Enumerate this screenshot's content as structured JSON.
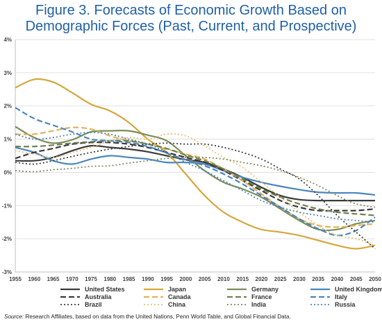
{
  "header": {
    "title_line1": "Figure 3. Forecasts of Economic Growth Based on",
    "title_line2": "Demographic Forces (Past, Current, and Prospective)"
  },
  "footer": {
    "source_label": "Source:",
    "source_text": " Research Affiliates, based on data from the United Nations, Penn World Table, and Global Financial Data."
  },
  "chart_data": {
    "type": "line",
    "title": "Figure 3. Forecasts of Economic Growth Based on Demographic Forces (Past, Current, and Prospective)",
    "x": [
      1955,
      1960,
      1965,
      1970,
      1975,
      1980,
      1985,
      1990,
      1995,
      2000,
      2005,
      2010,
      2015,
      2020,
      2025,
      2030,
      2035,
      2040,
      2045,
      2050
    ],
    "ylim": [
      -3,
      4
    ],
    "yticks": [
      -3,
      -2,
      -1,
      0,
      1,
      2,
      3,
      4
    ],
    "ytick_labels": [
      "-3%",
      "-2%",
      "-1%",
      "0%",
      "1%",
      "2%",
      "3%",
      "4%"
    ],
    "xtick_labels": [
      "1955",
      "1960",
      "1965",
      "1970",
      "1975",
      "1980",
      "1985",
      "1990",
      "1995",
      "2000",
      "2005",
      "2010",
      "2015",
      "2020",
      "2025",
      "2030",
      "2035",
      "2040",
      "2045",
      "2050"
    ],
    "grid": "horizontal",
    "legend_position": "bottom",
    "series": [
      {
        "name": "United States",
        "color": "#3a3a3a",
        "dash": "solid",
        "width": 2.2,
        "values": [
          0.35,
          0.35,
          0.45,
          0.65,
          0.8,
          0.75,
          0.7,
          0.62,
          0.5,
          0.38,
          0.3,
          0.1,
          -0.15,
          -0.45,
          -0.7,
          -0.82,
          -0.85,
          -0.85,
          -0.85,
          -0.85
        ]
      },
      {
        "name": "Japan",
        "color": "#d6a63c",
        "dash": "solid",
        "width": 2.2,
        "values": [
          2.55,
          2.8,
          2.72,
          2.4,
          2.05,
          1.85,
          1.5,
          1.0,
          0.6,
          -0.05,
          -0.7,
          -1.2,
          -1.5,
          -1.72,
          -1.8,
          -1.9,
          -2.05,
          -2.2,
          -2.3,
          -2.2
        ]
      },
      {
        "name": "Germany",
        "color": "#7b8c5a",
        "dash": "solid",
        "width": 2.2,
        "values": [
          1.38,
          1.05,
          0.88,
          0.98,
          1.22,
          1.25,
          1.25,
          1.12,
          0.95,
          0.5,
          0.05,
          -0.3,
          -0.5,
          -0.75,
          -1.1,
          -1.45,
          -1.72,
          -1.72,
          -1.55,
          -1.45
        ]
      },
      {
        "name": "United Kingdom",
        "color": "#4a85bd",
        "dash": "solid",
        "width": 2.2,
        "values": [
          0.75,
          0.6,
          0.35,
          0.25,
          0.4,
          0.5,
          0.45,
          0.4,
          0.3,
          0.3,
          0.25,
          0.05,
          -0.15,
          -0.3,
          -0.42,
          -0.52,
          -0.6,
          -0.62,
          -0.62,
          -0.68
        ]
      },
      {
        "name": "Australia",
        "color": "#3a3a3a",
        "dash": "8,4",
        "width": 2.2,
        "values": [
          0.42,
          0.6,
          0.72,
          0.85,
          0.9,
          0.9,
          0.85,
          0.75,
          0.6,
          0.45,
          0.3,
          0.05,
          -0.25,
          -0.55,
          -0.85,
          -1.05,
          -1.15,
          -1.15,
          -1.15,
          -1.1
        ]
      },
      {
        "name": "Canada",
        "color": "#e0b25a",
        "dash": "8,4",
        "width": 2.2,
        "values": [
          1.15,
          1.15,
          1.25,
          1.35,
          1.3,
          1.1,
          0.95,
          0.85,
          0.7,
          0.55,
          0.4,
          0.1,
          -0.25,
          -0.65,
          -1.05,
          -1.4,
          -1.6,
          -1.65,
          -1.6,
          -1.55
        ]
      },
      {
        "name": "France",
        "color": "#6f7f52",
        "dash": "8,4",
        "width": 2.2,
        "values": [
          0.78,
          0.78,
          0.82,
          0.88,
          0.92,
          0.95,
          0.95,
          0.85,
          0.72,
          0.52,
          0.35,
          0.1,
          -0.2,
          -0.5,
          -0.75,
          -0.95,
          -1.1,
          -1.2,
          -1.25,
          -1.3
        ]
      },
      {
        "name": "Italy",
        "color": "#4a85bd",
        "dash": "8,4",
        "width": 2.2,
        "values": [
          1.95,
          1.62,
          1.42,
          1.22,
          1.0,
          0.95,
          0.9,
          0.78,
          0.58,
          0.38,
          0.2,
          -0.05,
          -0.35,
          -0.7,
          -1.05,
          -1.4,
          -1.7,
          -1.9,
          -1.75,
          -1.35
        ]
      },
      {
        "name": "Brazil",
        "color": "#3a3a3a",
        "dash": "2,3",
        "width": 1.8,
        "values": [
          0.3,
          0.25,
          0.35,
          0.48,
          0.6,
          0.7,
          0.78,
          0.85,
          0.88,
          0.85,
          0.85,
          0.75,
          0.6,
          0.4,
          0.1,
          -0.2,
          -0.7,
          -1.3,
          -1.8,
          -2.3
        ]
      },
      {
        "name": "China",
        "color": "#e5c070",
        "dash": "2,3",
        "width": 1.8,
        "values": [
          0.65,
          0.55,
          0.45,
          0.6,
          0.75,
          0.95,
          1.05,
          1.0,
          1.15,
          1.1,
          0.8,
          0.45,
          0.15,
          -0.3,
          -0.75,
          -1.2,
          -1.6,
          -1.9,
          -2.0,
          -2.2
        ]
      },
      {
        "name": "India",
        "color": "#7b8c5a",
        "dash": "2,3",
        "width": 1.8,
        "values": [
          0.05,
          0.02,
          0.08,
          0.12,
          0.18,
          0.2,
          0.28,
          0.35,
          0.42,
          0.45,
          0.45,
          0.4,
          0.3,
          0.2,
          0.05,
          -0.15,
          -0.4,
          -0.7,
          -0.95,
          -1.05
        ]
      },
      {
        "name": "Russia",
        "color": "#4a85bd",
        "dash": "2,3",
        "width": 1.8,
        "values": [
          1.15,
          1.0,
          1.05,
          1.15,
          1.2,
          1.15,
          1.0,
          0.85,
          0.6,
          0.3,
          0.05,
          -0.25,
          -0.55,
          -0.85,
          -1.05,
          -1.2,
          -1.3,
          -1.4,
          -1.45,
          -1.5
        ]
      }
    ]
  }
}
